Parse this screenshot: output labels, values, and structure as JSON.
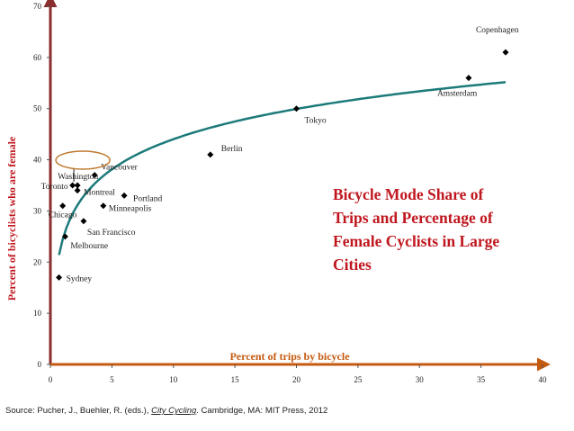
{
  "colors": {
    "axis": "#8b2e2e",
    "axis_title_x": "#c55a11",
    "axis_title_y": "#c0171f",
    "trendline": "#1d7a7a",
    "marker": "#000000",
    "highlight": "#c07a30",
    "title": "#c0171f"
  },
  "title_lines": [
    "Bicycle Mode Share of",
    "Trips and Percentage of",
    "Female Cyclists in Large",
    "Cities"
  ],
  "source": {
    "prefix": "Source: Pucher, J., Buehler, R. (eds.), ",
    "book": "City Cycling",
    "suffix": ". Cambridge, MA: MIT Press, 2012"
  },
  "chart_data": {
    "type": "scatter",
    "xlabel": "Percent of trips by bicycle",
    "ylabel": "Percent of bicyclists who are female",
    "xlim": [
      0,
      40
    ],
    "ylim": [
      0,
      70
    ],
    "xticks": [
      0,
      5,
      10,
      15,
      20,
      25,
      30,
      35,
      40
    ],
    "yticks": [
      0,
      10,
      20,
      30,
      40,
      50,
      60,
      70
    ],
    "grid": false,
    "trendline": "logarithmic",
    "points": [
      {
        "label": "Copenhagen",
        "x": 37,
        "y": 61
      },
      {
        "label": "Amsterdam",
        "x": 34,
        "y": 56
      },
      {
        "label": "Tokyo",
        "x": 20,
        "y": 50
      },
      {
        "label": "Berlin",
        "x": 13,
        "y": 41
      },
      {
        "label": "Vancouver",
        "x": 3.6,
        "y": 37
      },
      {
        "label": "Washington",
        "x": 2.2,
        "y": 35
      },
      {
        "label": "Toronto",
        "x": 1.8,
        "y": 35
      },
      {
        "label": "Montreal",
        "x": 2.2,
        "y": 34
      },
      {
        "label": "Portland",
        "x": 6,
        "y": 33
      },
      {
        "label": "Minneapolis",
        "x": 4.3,
        "y": 31
      },
      {
        "label": "Chicago",
        "x": 1,
        "y": 31
      },
      {
        "label": "San Francisco",
        "x": 2.7,
        "y": 28
      },
      {
        "label": "Melbourne",
        "x": 1.2,
        "y": 25
      },
      {
        "label": "Sydney",
        "x": 0.7,
        "y": 17
      }
    ]
  }
}
